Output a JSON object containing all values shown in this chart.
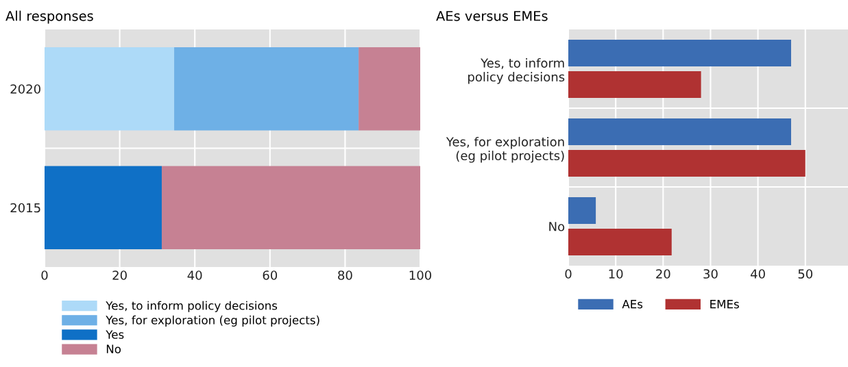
{
  "chart_data": [
    {
      "type": "bar",
      "title": "All responses",
      "orientation": "horizontal",
      "stacked": true,
      "categories": [
        "2020",
        "2015"
      ],
      "xlim": [
        0,
        100
      ],
      "xticks": [
        0,
        20,
        40,
        60,
        80,
        100
      ],
      "grid": "x",
      "legend": "bottom",
      "series": [
        {
          "name": "Yes, to inform policy decisions",
          "color": "#addaf8",
          "values": [
            34.5,
            null
          ]
        },
        {
          "name": "Yes, for exploration (eg pilot projects)",
          "color": "#6eb0e6",
          "values": [
            49.1,
            null
          ]
        },
        {
          "name": "Yes",
          "color": "#0f70c6",
          "values": [
            null,
            31.2
          ]
        },
        {
          "name": "No",
          "color": "#c68193",
          "values": [
            16.4,
            68.8
          ]
        }
      ]
    },
    {
      "type": "bar",
      "title": "AEs versus EMEs",
      "orientation": "horizontal",
      "categories": [
        "Yes, to inform\npolicy decisions",
        "Yes, for exploration\n(eg pilot projects)",
        "No"
      ],
      "xlim": [
        0,
        59
      ],
      "xticks": [
        0,
        10,
        20,
        30,
        40,
        50
      ],
      "grid": "x",
      "legend": "bottom",
      "series": [
        {
          "name": "AEs",
          "color": "#3b6db3",
          "values": [
            47.0,
            47.0,
            5.8
          ]
        },
        {
          "name": "EMEs",
          "color": "#b03232",
          "values": [
            28.0,
            50.0,
            21.8
          ]
        }
      ]
    }
  ]
}
